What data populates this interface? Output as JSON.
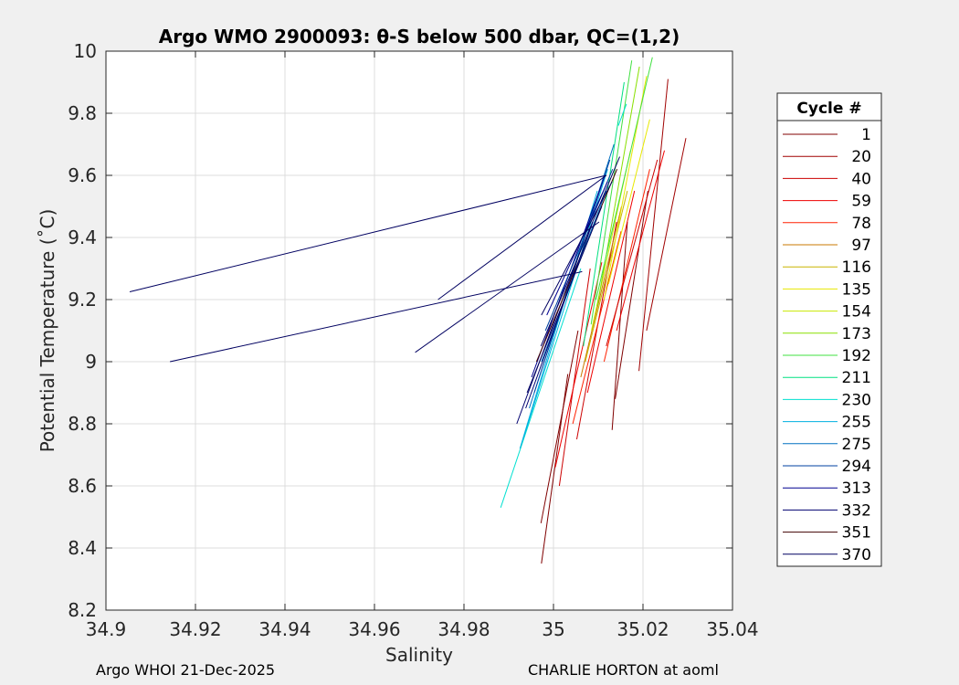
{
  "chart_data": {
    "type": "line",
    "title": "Argo WMO 2900093: θ-S below 500 dbar,  QC=(1,2)",
    "xlabel": "Salinity",
    "ylabel": "Potential Temperature (˚C)",
    "xlim": [
      34.9,
      35.04
    ],
    "ylim": [
      8.2,
      10.0
    ],
    "xticks": [
      34.9,
      34.92,
      34.94,
      34.96,
      34.98,
      35.0,
      35.02,
      35.04
    ],
    "xtick_labels": [
      "34.9",
      "34.92",
      "34.94",
      "34.96",
      "34.98",
      "35",
      "35.02",
      "35.04"
    ],
    "yticks": [
      8.2,
      8.4,
      8.6,
      8.8,
      9.0,
      9.2,
      9.4,
      9.6,
      9.8,
      10.0
    ],
    "ytick_labels": [
      "8.2",
      "8.4",
      "8.6",
      "8.8",
      "9",
      "9.2",
      "9.4",
      "9.6",
      "9.8",
      "10"
    ],
    "grid": true,
    "legend": {
      "title": "Cycle #",
      "placement": "outside-right",
      "entries": [
        {
          "label": "1",
          "color": "#800000"
        },
        {
          "label": "20",
          "color": "#a00000"
        },
        {
          "label": "40",
          "color": "#cc0000"
        },
        {
          "label": "59",
          "color": "#ee0000"
        },
        {
          "label": "78",
          "color": "#ff2000"
        },
        {
          "label": "97",
          "color": "#c87800"
        },
        {
          "label": "116",
          "color": "#c8b400"
        },
        {
          "label": "135",
          "color": "#e8e800"
        },
        {
          "label": "154",
          "color": "#c8e800"
        },
        {
          "label": "173",
          "color": "#88e000"
        },
        {
          "label": "192",
          "color": "#40e040"
        },
        {
          "label": "211",
          "color": "#00e080"
        },
        {
          "label": "230",
          "color": "#00e0d0"
        },
        {
          "label": "255",
          "color": "#00b0e0"
        },
        {
          "label": "275",
          "color": "#0070c0"
        },
        {
          "label": "294",
          "color": "#0040a0"
        },
        {
          "label": "313",
          "color": "#000090"
        },
        {
          "label": "332",
          "color": "#000070"
        },
        {
          "label": "351",
          "color": "#400000"
        },
        {
          "label": "370",
          "color": "#000060"
        }
      ]
    },
    "series": [
      {
        "color": "#800000",
        "x": [
          34.9973,
          35.0032
        ],
        "y": [
          8.35,
          8.96
        ]
      },
      {
        "color": "#800000",
        "x": [
          34.9972,
          35.0055
        ],
        "y": [
          8.48,
          9.1
        ]
      },
      {
        "color": "#800000",
        "x": [
          35.0131,
          35.0165
        ],
        "y": [
          8.78,
          9.45
        ]
      },
      {
        "color": "#a00000",
        "x": [
          35.0191,
          35.0256
        ],
        "y": [
          8.97,
          9.91
        ]
      },
      {
        "color": "#a00000",
        "x": [
          35.0208,
          35.0296
        ],
        "y": [
          9.1,
          9.72
        ]
      },
      {
        "color": "#800000",
        "x": [
          35.0138,
          35.0211
        ],
        "y": [
          8.88,
          9.55
        ]
      },
      {
        "color": "#cc0000",
        "x": [
          35.0013,
          35.0082
        ],
        "y": [
          8.6,
          9.3
        ]
      },
      {
        "color": "#cc0000",
        "x": [
          35.0052,
          35.0141
        ],
        "y": [
          8.75,
          9.45
        ]
      },
      {
        "color": "#ee0000",
        "x": [
          35.0004,
          35.0108
        ],
        "y": [
          8.66,
          9.32
        ]
      },
      {
        "color": "#ee0000",
        "x": [
          35.0076,
          35.0181
        ],
        "y": [
          8.9,
          9.55
        ]
      },
      {
        "color": "#ff2000",
        "x": [
          35.0043,
          35.0151
        ],
        "y": [
          8.8,
          9.42
        ]
      },
      {
        "color": "#ff2000",
        "x": [
          35.0113,
          35.0215
        ],
        "y": [
          9.0,
          9.62
        ]
      },
      {
        "color": "#ee0000",
        "x": [
          35.0141,
          35.0248
        ],
        "y": [
          9.1,
          9.68
        ]
      },
      {
        "color": "#cc0000",
        "x": [
          35.0118,
          35.0232
        ],
        "y": [
          9.05,
          9.65
        ]
      },
      {
        "color": "#c87800",
        "x": [
          35.0061,
          35.0152
        ],
        "y": [
          8.95,
          9.5
        ]
      },
      {
        "color": "#c8b400",
        "x": [
          35.0071,
          35.0165
        ],
        "y": [
          9.0,
          9.55
        ]
      },
      {
        "color": "#e8e800",
        "x": [
          35.0113,
          35.0208
        ],
        "y": [
          9.2,
          9.92
        ]
      },
      {
        "color": "#e8e800",
        "x": [
          35.0123,
          35.0215
        ],
        "y": [
          9.25,
          9.78
        ]
      },
      {
        "color": "#c8e800",
        "x": [
          35.0085,
          35.0172
        ],
        "y": [
          9.1,
          9.68
        ]
      },
      {
        "color": "#88e000",
        "x": [
          35.0098,
          35.0192
        ],
        "y": [
          9.18,
          9.95
        ]
      },
      {
        "color": "#40e040",
        "x": [
          35.0084,
          35.0175
        ],
        "y": [
          9.12,
          9.97
        ]
      },
      {
        "color": "#40e040",
        "x": [
          35.0095,
          35.0221
        ],
        "y": [
          9.2,
          9.98
        ]
      },
      {
        "color": "#00e080",
        "x": [
          35.0067,
          35.0158
        ],
        "y": [
          9.05,
          9.9
        ]
      },
      {
        "color": "#00e0d0",
        "x": [
          34.9882,
          35.0061
        ],
        "y": [
          8.53,
          9.3
        ]
      },
      {
        "color": "#00e0d0",
        "x": [
          35.0145,
          35.0163
        ],
        "y": [
          9.76,
          9.83
        ]
      },
      {
        "color": "#00b0e0",
        "x": [
          34.9925,
          35.0098
        ],
        "y": [
          8.72,
          9.55
        ]
      },
      {
        "color": "#00b0e0",
        "x": [
          34.9932,
          35.0121
        ],
        "y": [
          8.75,
          9.62
        ]
      },
      {
        "color": "#0070c0",
        "x": [
          34.9946,
          35.0135
        ],
        "y": [
          8.85,
          9.7
        ]
      },
      {
        "color": "#0040a0",
        "x": [
          34.9957,
          35.0126
        ],
        "y": [
          8.9,
          9.65
        ]
      },
      {
        "color": "#000090",
        "x": [
          34.9951,
          35.0115
        ],
        "y": [
          8.95,
          9.6
        ]
      },
      {
        "color": "#000070",
        "x": [
          34.9918,
          35.0058
        ],
        "y": [
          8.8,
          9.35
        ]
      },
      {
        "color": "#400000",
        "x": [
          34.9962,
          35.0142
        ],
        "y": [
          9.0,
          9.62
        ]
      },
      {
        "color": "#000060",
        "x": [
          34.9972,
          35.0148
        ],
        "y": [
          9.05,
          9.66
        ]
      },
      {
        "color": "#0040a0",
        "x": [
          34.9982,
          35.0132
        ],
        "y": [
          9.1,
          9.62
        ]
      },
      {
        "color": "#000090",
        "x": [
          34.9985,
          35.0121
        ],
        "y": [
          9.15,
          9.58
        ]
      },
      {
        "color": "#0070c0",
        "x": [
          34.9973,
          35.0118
        ],
        "y": [
          9.0,
          9.55
        ]
      },
      {
        "color": "#000070",
        "x": [
          34.9938,
          35.0088
        ],
        "y": [
          8.85,
          9.45
        ]
      },
      {
        "color": "#000060",
        "x": [
          34.9941,
          35.0108
        ],
        "y": [
          8.9,
          9.5
        ]
      },
      {
        "color": "#000060",
        "x": [
          34.9053,
          35.0118
        ],
        "y": [
          9.225,
          9.6
        ]
      },
      {
        "color": "#000060",
        "x": [
          34.9143,
          35.0064
        ],
        "y": [
          9.0,
          9.29
        ]
      },
      {
        "color": "#000060",
        "x": [
          34.9742,
          35.0118
        ],
        "y": [
          9.2,
          9.6
        ]
      },
      {
        "color": "#000060",
        "x": [
          34.9691,
          35.0102
        ],
        "y": [
          9.03,
          9.45
        ]
      },
      {
        "color": "#000060",
        "x": [
          34.9973,
          35.0131
        ],
        "y": [
          9.15,
          9.58
        ]
      }
    ]
  },
  "footer": {
    "left": "Argo WHOI 21-Dec-2025",
    "right": "CHARLIE HORTON at aoml"
  }
}
